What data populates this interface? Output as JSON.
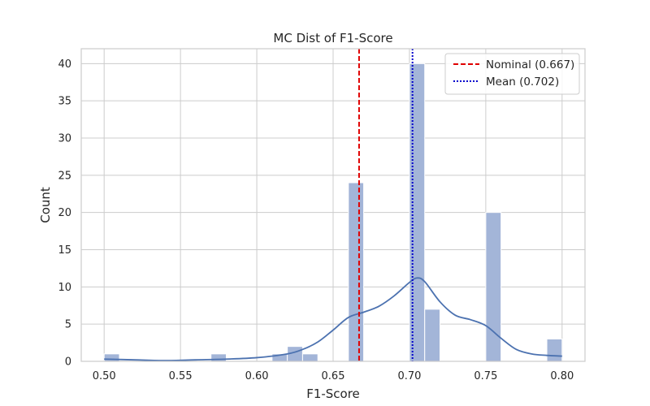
{
  "chart_data": {
    "type": "histogram",
    "title": "MC Dist of F1-Score",
    "xlabel": "F1-Score",
    "ylabel": "Count",
    "xlim": [
      0.485,
      0.815
    ],
    "ylim": [
      0,
      42
    ],
    "xticks": [
      0.5,
      0.55,
      0.6,
      0.65,
      0.7,
      0.75,
      0.8
    ],
    "xtick_labels": [
      "0.50",
      "0.55",
      "0.60",
      "0.65",
      "0.70",
      "0.75",
      "0.80"
    ],
    "yticks": [
      0,
      5,
      10,
      15,
      20,
      25,
      30,
      35,
      40
    ],
    "ytick_labels": [
      "0",
      "5",
      "10",
      "15",
      "20",
      "25",
      "30",
      "35",
      "40"
    ],
    "grid": true,
    "bin_width": 0.01,
    "bins": [
      {
        "start": 0.5,
        "count": 1
      },
      {
        "start": 0.57,
        "count": 1
      },
      {
        "start": 0.61,
        "count": 1
      },
      {
        "start": 0.62,
        "count": 2
      },
      {
        "start": 0.63,
        "count": 1
      },
      {
        "start": 0.66,
        "count": 24
      },
      {
        "start": 0.7,
        "count": 40
      },
      {
        "start": 0.71,
        "count": 7
      },
      {
        "start": 0.75,
        "count": 20
      },
      {
        "start": 0.79,
        "count": 3
      }
    ],
    "kde": {
      "x": [
        0.5,
        0.52,
        0.54,
        0.56,
        0.58,
        0.6,
        0.62,
        0.63,
        0.64,
        0.65,
        0.66,
        0.67,
        0.68,
        0.69,
        0.7,
        0.705,
        0.71,
        0.72,
        0.73,
        0.74,
        0.75,
        0.76,
        0.77,
        0.78,
        0.79,
        0.8
      ],
      "y": [
        0.3,
        0.2,
        0.1,
        0.2,
        0.3,
        0.5,
        1.0,
        1.6,
        2.6,
        4.2,
        5.9,
        6.6,
        7.4,
        8.8,
        10.6,
        11.2,
        10.7,
        8.0,
        6.2,
        5.6,
        4.8,
        3.1,
        1.6,
        1.0,
        0.8,
        0.7
      ]
    },
    "vlines": [
      {
        "name": "Nominal (0.667)",
        "x": 0.667,
        "color": "#e00000",
        "style": "dashed"
      },
      {
        "name": "Mean (0.702)",
        "x": 0.702,
        "color": "#0000cc",
        "style": "dotted"
      }
    ],
    "legend_position": "top-right",
    "colors": {
      "bar_fill": "#a3b5d8",
      "kde_line": "#4c72b0",
      "grid": "#cccccc",
      "spine": "#cccccc"
    }
  }
}
